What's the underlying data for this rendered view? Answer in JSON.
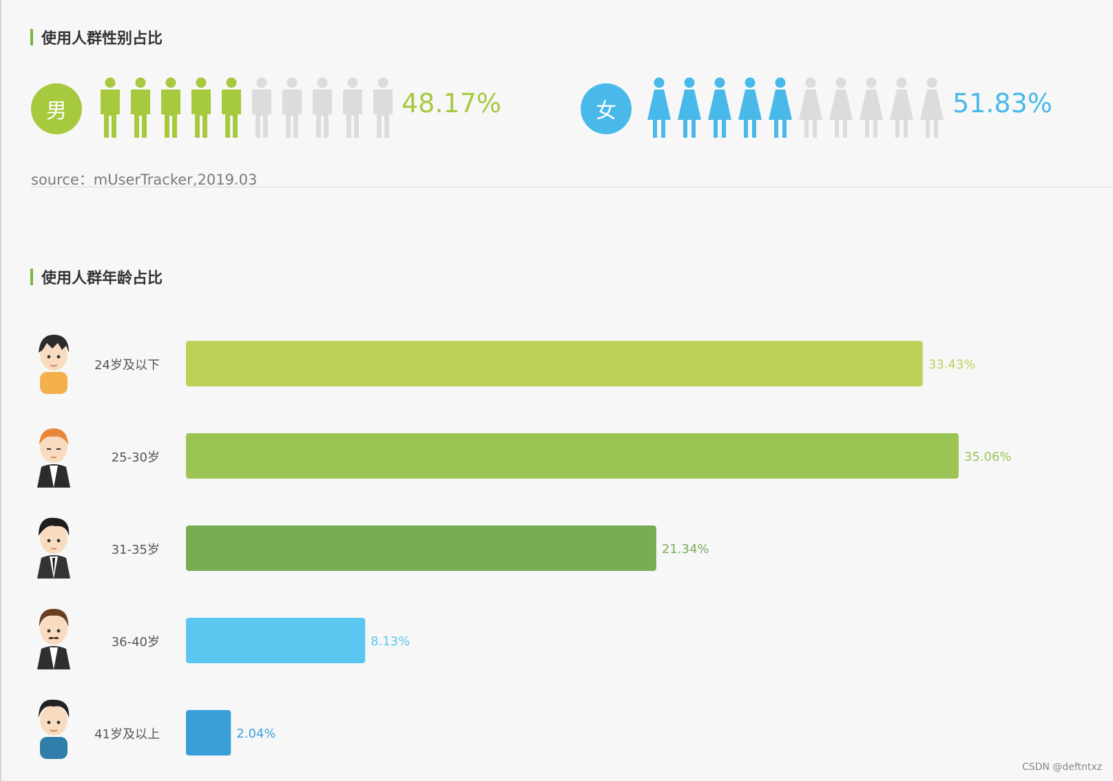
{
  "gender_section": {
    "title": "使用人群性别占比",
    "male": {
      "badge": "男",
      "percent": "48.17%",
      "filled_icons": 5,
      "total_icons": 10,
      "color": "#a6c93d"
    },
    "female": {
      "badge": "女",
      "percent": "51.83%",
      "filled_icons": 5,
      "total_icons": 10,
      "color": "#48b9e8"
    },
    "inactive_color": "#dcdcdc",
    "source": "source：mUserTracker,2019.03"
  },
  "age_section": {
    "title": "使用人群年龄占比"
  },
  "chart_data": {
    "type": "bar",
    "orientation": "horizontal",
    "title": "使用人群年龄占比",
    "categories": [
      "24岁及以下",
      "25-30岁",
      "31-35岁",
      "36-40岁",
      "41岁及以上"
    ],
    "values": [
      33.43,
      35.06,
      21.34,
      8.13,
      2.04
    ],
    "value_labels": [
      "33.43%",
      "35.06%",
      "21.34%",
      "8.13%",
      "2.04%"
    ],
    "colors": [
      "#bcd155",
      "#9cc455",
      "#78ac55",
      "#5bc6f0",
      "#3a9fd8"
    ],
    "xlim": [
      0,
      36
    ],
    "grid": false
  },
  "watermark": "CSDN @deftntxz"
}
